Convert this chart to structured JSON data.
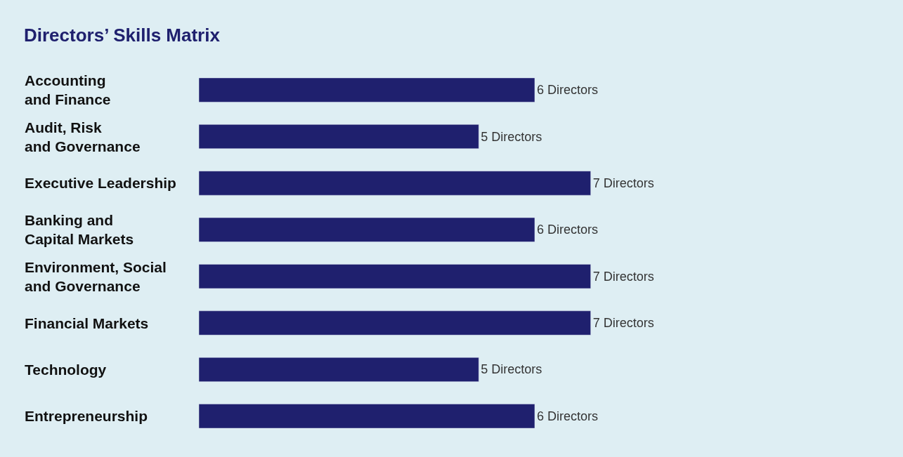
{
  "chart_data": {
    "type": "bar",
    "orientation": "horizontal",
    "title": "Directors’ Skills Matrix",
    "categories": [
      "Accounting\nand Finance",
      "Audit, Risk\nand Governance",
      "Executive Leadership",
      "Banking and\nCapital Markets",
      "Environment, Social\nand Governance",
      "Financial Markets",
      "Technology",
      "Entrepreneurship"
    ],
    "values": [
      6,
      5,
      7,
      6,
      7,
      7,
      5,
      6
    ],
    "value_labels": [
      "6 Directors",
      "5 Directors",
      "7 Directors",
      "6 Directors",
      "7 Directors",
      "7 Directors",
      "5 Directors",
      "6 Directors"
    ],
    "color": "#1f206e"
  }
}
